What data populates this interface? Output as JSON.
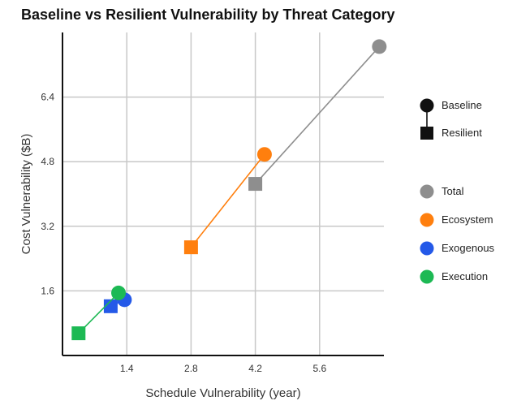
{
  "chart_data": {
    "type": "scatter",
    "title": "Baseline vs Resilient Vulnerability by Threat Category",
    "xlabel": "Schedule Vulnerability (year)",
    "ylabel": "Cost Vulnerability ($B)",
    "xticks": [
      1.4,
      2.8,
      4.2,
      5.6
    ],
    "yticks": [
      1.6,
      3.2,
      4.8,
      6.4
    ],
    "xlim": [
      0.0,
      7.0
    ],
    "ylim": [
      0.0,
      8.0
    ],
    "grid": true,
    "legend_placement": "right",
    "marker_legend": [
      {
        "label": "Baseline",
        "marker": "circle"
      },
      {
        "label": "Resilient",
        "marker": "square"
      }
    ],
    "series": [
      {
        "name": "Total",
        "color": "#8e8e8e",
        "baseline": {
          "x": 6.9,
          "y": 7.65
        },
        "resilient": {
          "x": 4.2,
          "y": 4.25
        }
      },
      {
        "name": "Ecosystem",
        "color": "#ff7f0e",
        "baseline": {
          "x": 4.4,
          "y": 4.98
        },
        "resilient": {
          "x": 2.8,
          "y": 2.68
        }
      },
      {
        "name": "Exogenous",
        "color": "#2459e8",
        "baseline": {
          "x": 1.35,
          "y": 1.38
        },
        "resilient": {
          "x": 1.05,
          "y": 1.22
        }
      },
      {
        "name": "Execution",
        "color": "#1db954",
        "baseline": {
          "x": 1.22,
          "y": 1.55
        },
        "resilient": {
          "x": 0.35,
          "y": 0.55
        }
      }
    ]
  }
}
